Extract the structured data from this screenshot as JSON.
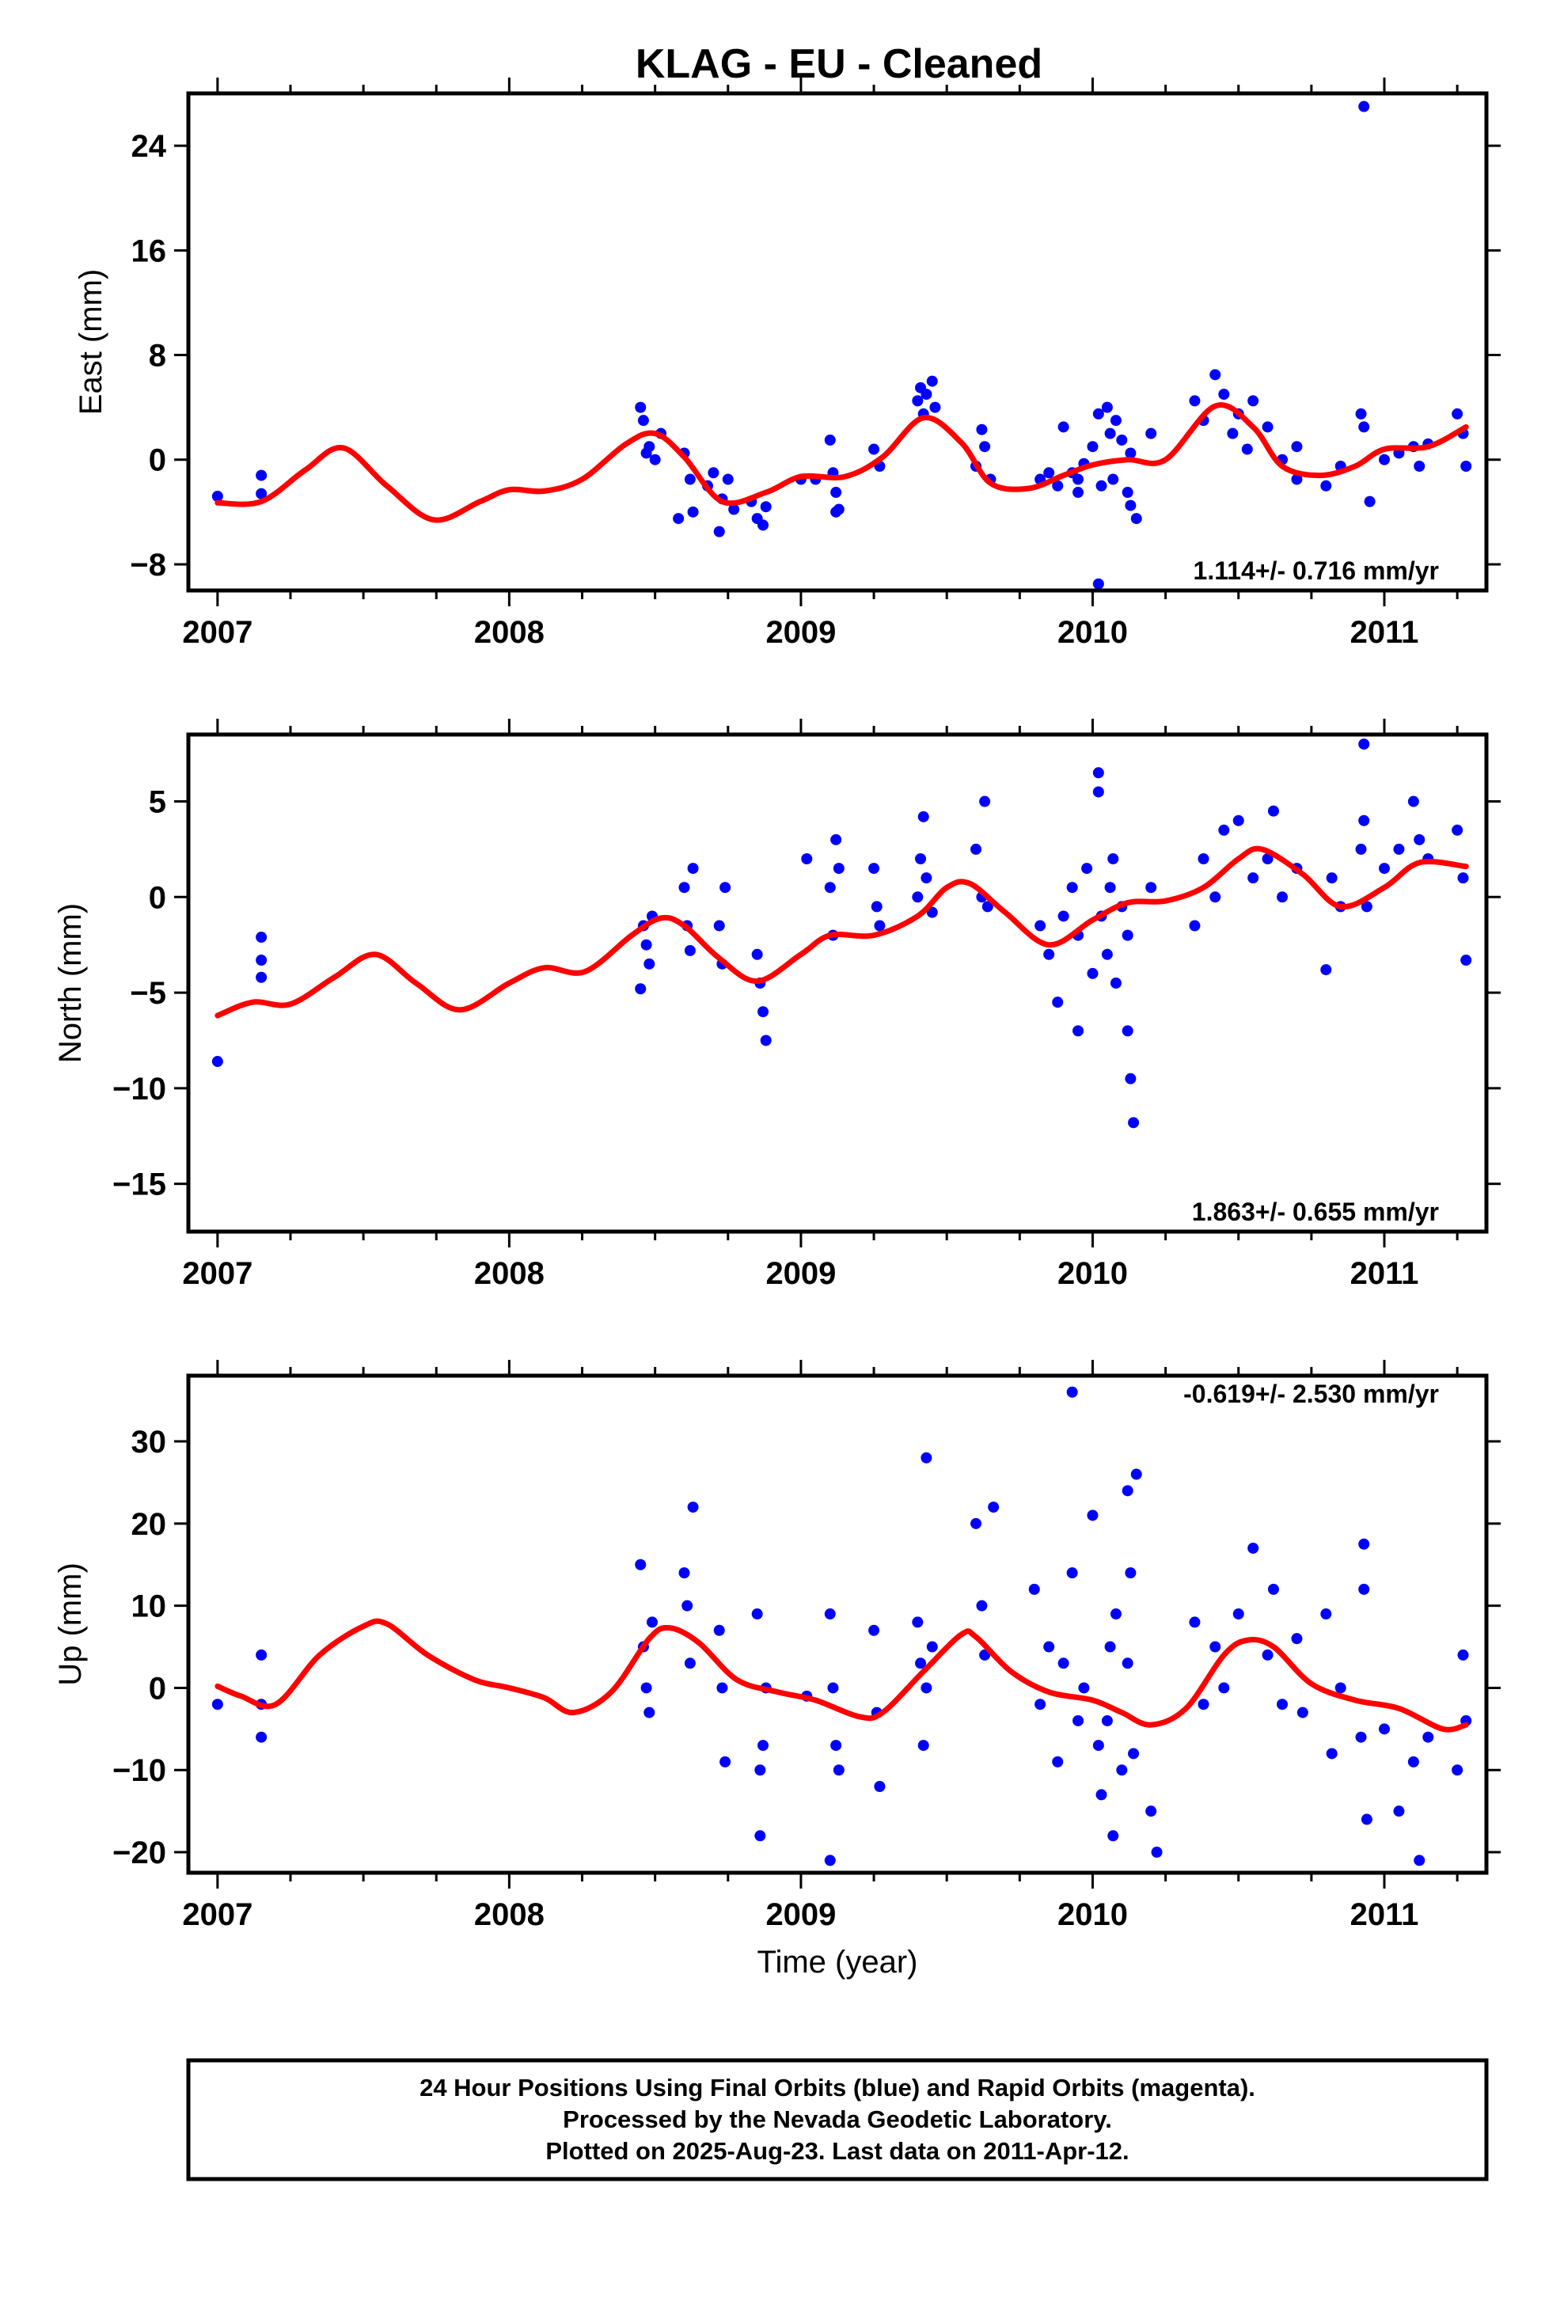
{
  "chart_data": {
    "title": "KLAG  - EU - Cleaned",
    "type": "scatter",
    "x_tick_labels": [
      "2007",
      "2008",
      "2009",
      "2010",
      "2011"
    ],
    "xlabel": "Time (year)",
    "xlim": [
      2006.9,
      2011.35
    ],
    "point_color": "#0000ff",
    "fit_color": "#ff0000",
    "panels": [
      {
        "name": "east",
        "ylabel": "East (mm)",
        "ylim": [
          -10,
          28
        ],
        "yticks": [
          -8,
          0,
          8,
          16,
          24
        ],
        "ytick_labels": [
          "−8",
          "0",
          "8",
          "16",
          "24"
        ],
        "rate": "1.114+/- 0.716 mm/yr",
        "rate_position": "bottom-right",
        "series": [
          {
            "type": "fit",
            "x": [
              2007.0,
              2007.15,
              2007.3,
              2007.43,
              2007.58,
              2007.74,
              2007.9,
              2008.0,
              2008.12,
              2008.25,
              2008.4,
              2008.5,
              2008.6,
              2008.73,
              2008.88,
              2009.0,
              2009.15,
              2009.28,
              2009.42,
              2009.55,
              2009.65,
              2009.78,
              2009.9,
              2010.0,
              2010.12,
              2010.25,
              2010.42,
              2010.55,
              2010.65,
              2010.78,
              2010.9,
              2011.0,
              2011.15,
              2011.28
            ],
            "y": [
              -3.3,
              -3.2,
              -0.8,
              0.9,
              -2.0,
              -4.6,
              -3.2,
              -2.3,
              -2.4,
              -1.5,
              1.2,
              2.0,
              0.2,
              -3.2,
              -2.5,
              -1.3,
              -1.3,
              0.2,
              3.2,
              1.3,
              -1.8,
              -2.2,
              -1.2,
              -0.4,
              0.0,
              0.0,
              4.1,
              2.5,
              -0.5,
              -1.2,
              -0.5,
              0.8,
              1.0,
              2.5
            ]
          },
          {
            "type": "points",
            "x": [
              2007.0,
              2007.15,
              2007.15,
              2008.45,
              2008.46,
              2008.47,
              2008.48,
              2008.5,
              2008.52,
              2008.58,
              2008.6,
              2008.62,
              2008.63,
              2008.68,
              2008.72,
              2008.73,
              2008.75,
              2008.77,
              2008.83,
              2008.85,
              2008.87,
              2008.88,
              2009.0,
              2009.1,
              2009.11,
              2009.12,
              2009.13,
              2009.25,
              2009.27,
              2009.4,
              2009.41,
              2009.42,
              2009.43,
              2009.45,
              2009.46,
              2009.6,
              2009.62,
              2009.63,
              2009.65,
              2009.82,
              2009.85,
              2009.88,
              2009.9,
              2009.93,
              2009.95,
              2009.97,
              2010.0,
              2010.02,
              2010.03,
              2010.05,
              2010.06,
              2010.07,
              2010.08,
              2010.1,
              2010.12,
              2010.13,
              2010.15,
              2010.2,
              2010.35,
              2010.38,
              2010.42,
              2010.45,
              2010.48,
              2010.5,
              2010.53,
              2010.55,
              2010.6,
              2010.65,
              2010.7,
              2010.7,
              2010.8,
              2010.85,
              2010.92,
              2010.93,
              2010.95,
              2011.0,
              2011.05,
              2011.1,
              2011.12,
              2011.15,
              2011.25,
              2011.27,
              2011.28,
              2010.02,
              2010.93,
              2009.05,
              2008.7,
              2009.12,
              2009.95,
              2010.13
            ],
            "y": [
              -2.8,
              -1.2,
              -2.6,
              4.0,
              3.0,
              0.5,
              1.0,
              0.0,
              2.0,
              -4.5,
              0.5,
              -1.5,
              -4.0,
              -2.0,
              -5.5,
              -3.0,
              -1.5,
              -3.8,
              -3.2,
              -4.5,
              -5.0,
              -3.6,
              -1.5,
              1.5,
              -1.0,
              -2.5,
              -3.8,
              0.8,
              -0.5,
              4.5,
              5.5,
              3.5,
              5.0,
              6.0,
              4.0,
              -0.5,
              2.3,
              1.0,
              -1.5,
              -1.5,
              -1.0,
              -2.0,
              2.5,
              -1.0,
              -2.5,
              -0.3,
              1.0,
              3.5,
              -2.0,
              4.0,
              2.0,
              -1.5,
              3.0,
              1.5,
              -2.5,
              0.5,
              -4.5,
              2.0,
              4.5,
              3.0,
              6.5,
              5.0,
              2.0,
              3.5,
              0.8,
              4.5,
              2.5,
              0.0,
              -1.5,
              1.0,
              -2.0,
              -0.5,
              3.5,
              2.5,
              -3.2,
              0.0,
              0.5,
              1.0,
              -0.5,
              1.2,
              3.5,
              2.0,
              -0.5,
              -9.5,
              27.0,
              -1.5,
              -1.0,
              -4.0,
              -1.5,
              -3.5
            ]
          }
        ]
      },
      {
        "name": "north",
        "ylabel": "North (mm)",
        "ylim": [
          -17.5,
          8.5
        ],
        "yticks": [
          -15,
          -10,
          -5,
          0,
          5
        ],
        "ytick_labels": [
          "−15",
          "−10",
          "−5",
          "0",
          "5"
        ],
        "rate": "1.863+/- 0.655 mm/yr",
        "rate_position": "bottom-right",
        "series": [
          {
            "type": "fit",
            "x": [
              2007.0,
              2007.12,
              2007.25,
              2007.4,
              2007.54,
              2007.68,
              2007.83,
              2008.0,
              2008.12,
              2008.26,
              2008.42,
              2008.52,
              2008.6,
              2008.72,
              2008.85,
              2009.0,
              2009.1,
              2009.25,
              2009.4,
              2009.5,
              2009.58,
              2009.7,
              2009.85,
              2010.0,
              2010.12,
              2010.25,
              2010.38,
              2010.5,
              2010.58,
              2010.72,
              2010.85,
              2011.0,
              2011.12,
              2011.28
            ],
            "y": [
              -6.2,
              -5.5,
              -5.6,
              -4.2,
              -3.0,
              -4.5,
              -5.9,
              -4.5,
              -3.7,
              -3.9,
              -2.0,
              -1.1,
              -1.5,
              -3.2,
              -4.4,
              -3.0,
              -2.0,
              -2.0,
              -1.0,
              0.5,
              0.7,
              -0.8,
              -2.5,
              -1.2,
              -0.3,
              -0.2,
              0.5,
              2.0,
              2.5,
              1.2,
              -0.5,
              0.5,
              1.8,
              1.6
            ]
          },
          {
            "type": "points",
            "x": [
              2007.0,
              2007.15,
              2007.15,
              2007.15,
              2008.45,
              2008.46,
              2008.47,
              2008.48,
              2008.49,
              2008.6,
              2008.61,
              2008.62,
              2008.63,
              2008.72,
              2008.73,
              2008.74,
              2008.85,
              2008.86,
              2008.87,
              2008.88,
              2009.02,
              2009.1,
              2009.11,
              2009.12,
              2009.13,
              2009.25,
              2009.26,
              2009.27,
              2009.4,
              2009.41,
              2009.42,
              2009.43,
              2009.45,
              2009.6,
              2009.62,
              2009.63,
              2009.64,
              2009.82,
              2009.85,
              2009.88,
              2009.9,
              2009.93,
              2009.95,
              2009.98,
              2010.0,
              2010.02,
              2010.03,
              2010.05,
              2010.06,
              2010.07,
              2010.08,
              2010.1,
              2010.12,
              2010.13,
              2010.14,
              2010.2,
              2010.35,
              2010.38,
              2010.42,
              2010.45,
              2010.5,
              2010.55,
              2010.6,
              2010.62,
              2010.65,
              2010.7,
              2010.8,
              2010.82,
              2010.85,
              2010.92,
              2010.93,
              2010.94,
              2011.0,
              2011.05,
              2011.1,
              2011.12,
              2011.15,
              2011.25,
              2011.27,
              2011.28,
              2010.02,
              2010.93,
              2010.12,
              2009.95
            ],
            "y": [
              -8.6,
              -2.1,
              -3.3,
              -4.2,
              -4.8,
              -1.5,
              -2.5,
              -3.5,
              -1.0,
              0.5,
              -1.5,
              -2.8,
              1.5,
              -1.5,
              -3.5,
              0.5,
              -3.0,
              -4.5,
              -6.0,
              -7.5,
              2.0,
              0.5,
              -2.0,
              3.0,
              1.5,
              1.5,
              -0.5,
              -1.5,
              0.0,
              2.0,
              4.2,
              1.0,
              -0.8,
              2.5,
              0.0,
              5.0,
              -0.5,
              -1.5,
              -3.0,
              -5.5,
              -1.0,
              0.5,
              -2.0,
              1.5,
              -4.0,
              6.5,
              -1.0,
              -3.0,
              0.5,
              2.0,
              -4.5,
              -0.5,
              -2.0,
              -9.5,
              -11.8,
              0.5,
              -1.5,
              2.0,
              0.0,
              3.5,
              4.0,
              1.0,
              2.0,
              4.5,
              0.0,
              1.5,
              -3.8,
              1.0,
              -0.5,
              2.5,
              4.0,
              -0.5,
              1.5,
              2.5,
              5.0,
              3.0,
              2.0,
              3.5,
              1.0,
              -3.3,
              5.5,
              8.0,
              -7.0,
              -7.0
            ]
          }
        ]
      },
      {
        "name": "up",
        "ylabel": "Up (mm)",
        "ylim": [
          -22.5,
          38
        ],
        "yticks": [
          -20,
          -10,
          0,
          10,
          20,
          30
        ],
        "ytick_labels": [
          "−20",
          "−10",
          "0",
          "10",
          "20",
          "30"
        ],
        "rate": "-0.619+/- 2.530 mm/yr",
        "rate_position": "top-right",
        "series": [
          {
            "type": "fit",
            "x": [
              2007.0,
              2007.08,
              2007.2,
              2007.35,
              2007.5,
              2007.58,
              2007.72,
              2007.88,
              2008.0,
              2008.12,
              2008.22,
              2008.35,
              2008.48,
              2008.55,
              2008.65,
              2008.78,
              2008.92,
              2009.05,
              2009.2,
              2009.28,
              2009.42,
              2009.55,
              2009.6,
              2009.72,
              2009.85,
              2010.0,
              2010.1,
              2010.2,
              2010.32,
              2010.45,
              2010.53,
              2010.62,
              2010.75,
              2010.9,
              2011.05,
              2011.2,
              2011.28
            ],
            "y": [
              0.2,
              -1.0,
              -2.0,
              4.0,
              7.5,
              7.8,
              4.0,
              1.0,
              0.0,
              -1.2,
              -3.0,
              -0.5,
              6.0,
              7.3,
              5.5,
              1.0,
              -0.5,
              -1.5,
              -3.5,
              -3.0,
              2.0,
              6.5,
              6.2,
              2.0,
              -0.5,
              -1.5,
              -3.0,
              -4.5,
              -2.5,
              4.0,
              5.8,
              5.0,
              0.5,
              -1.5,
              -2.5,
              -5.0,
              -4.5
            ]
          },
          {
            "type": "points",
            "x": [
              2007.0,
              2007.15,
              2007.15,
              2007.15,
              2008.45,
              2008.46,
              2008.47,
              2008.48,
              2008.49,
              2008.6,
              2008.61,
              2008.62,
              2008.63,
              2008.72,
              2008.73,
              2008.74,
              2008.85,
              2008.86,
              2008.87,
              2008.88,
              2009.02,
              2009.1,
              2009.11,
              2009.12,
              2009.13,
              2009.25,
              2009.26,
              2009.27,
              2009.4,
              2009.41,
              2009.42,
              2009.43,
              2009.45,
              2009.6,
              2009.62,
              2009.63,
              2009.66,
              2009.8,
              2009.82,
              2009.85,
              2009.88,
              2009.9,
              2009.93,
              2009.95,
              2009.97,
              2010.0,
              2010.02,
              2010.03,
              2010.05,
              2010.06,
              2010.07,
              2010.08,
              2010.1,
              2010.12,
              2010.13,
              2010.14,
              2010.15,
              2010.2,
              2010.22,
              2010.35,
              2010.38,
              2010.42,
              2010.45,
              2010.5,
              2010.55,
              2010.6,
              2010.62,
              2010.65,
              2010.7,
              2010.72,
              2010.8,
              2010.82,
              2010.85,
              2010.92,
              2010.93,
              2010.94,
              2011.0,
              2011.05,
              2011.1,
              2011.12,
              2011.15,
              2011.25,
              2011.27,
              2011.28,
              2009.93,
              2009.43,
              2010.12,
              2008.86,
              2009.1,
              2010.93
            ],
            "y": [
              -2.0,
              4.0,
              -2.0,
              -6.0,
              15.0,
              5.0,
              0.0,
              -3.0,
              8.0,
              14.0,
              10.0,
              3.0,
              22.0,
              7.0,
              0.0,
              -9.0,
              9.0,
              -10.0,
              -7.0,
              0.0,
              -1.0,
              9.0,
              0.0,
              -7.0,
              -10.0,
              7.0,
              -3.0,
              -12.0,
              8.0,
              3.0,
              -7.0,
              0.0,
              5.0,
              20.0,
              10.0,
              4.0,
              22.0,
              12.0,
              -2.0,
              5.0,
              -9.0,
              3.0,
              14.0,
              -4.0,
              0.0,
              21.0,
              -7.0,
              -13.0,
              -4.0,
              5.0,
              -18.0,
              9.0,
              -10.0,
              3.0,
              14.0,
              -8.0,
              26.0,
              -15.0,
              -20.0,
              8.0,
              -2.0,
              5.0,
              0.0,
              9.0,
              17.0,
              4.0,
              12.0,
              -2.0,
              6.0,
              -3.0,
              9.0,
              -8.0,
              0.0,
              -6.0,
              12.0,
              -16.0,
              -5.0,
              -15.0,
              -9.0,
              -21.0,
              -6.0,
              -10.0,
              4.0,
              -4.0,
              36.0,
              28.0,
              24.0,
              -18.0,
              -21.0,
              17.5
            ]
          }
        ]
      }
    ],
    "footer_lines": [
      "24 Hour Positions Using Final Orbits (blue) and Rapid Orbits (magenta).",
      "Processed by the Nevada Geodetic Laboratory.",
      "Plotted on 2025-Aug-23. Last data on 2011-Apr-12."
    ]
  }
}
